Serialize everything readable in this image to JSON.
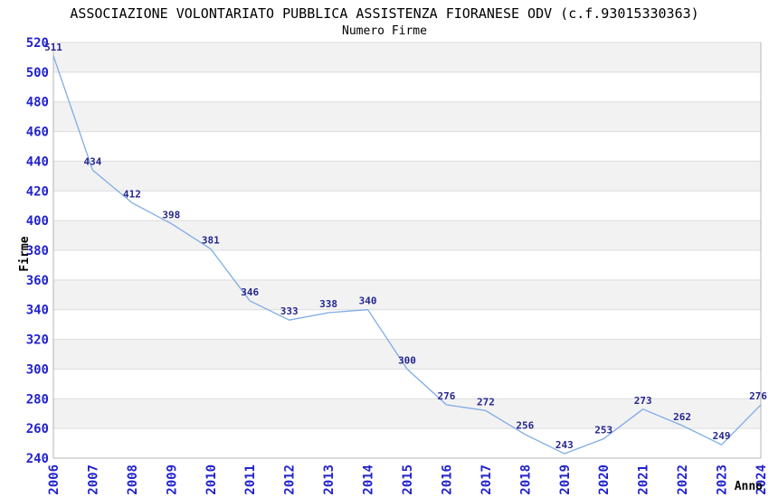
{
  "header": {
    "title": "ASSOCIAZIONE VOLONTARIATO PUBBLICA ASSISTENZA FIORANESE ODV (c.f.93015330363)",
    "subtitle": "Numero Firme"
  },
  "chart_data": {
    "type": "line",
    "title": "ASSOCIAZIONE VOLONTARIATO PUBBLICA ASSISTENZA FIORANESE ODV (c.f.93015330363)",
    "subtitle": "Numero Firme",
    "xlabel": "Anno",
    "ylabel": "Firme",
    "x": [
      2006,
      2007,
      2008,
      2009,
      2010,
      2011,
      2012,
      2013,
      2014,
      2015,
      2016,
      2017,
      2018,
      2019,
      2020,
      2021,
      2022,
      2023,
      2024
    ],
    "values": [
      511,
      434,
      412,
      398,
      381,
      346,
      333,
      338,
      340,
      300,
      276,
      272,
      256,
      243,
      253,
      273,
      262,
      249,
      276
    ],
    "ylim": [
      240,
      520
    ],
    "ytick_step": 20,
    "grid": "alternating-horizontal-bands",
    "legend": "none",
    "colors": {
      "line": "#7fabe6",
      "tick_label": "#2222cc",
      "data_label": "#26268f",
      "band": "#f2f2f2",
      "gridline": "#dcdcdc",
      "border": "#b4b4b4",
      "text": "#000000",
      "background": "#ffffff"
    }
  }
}
